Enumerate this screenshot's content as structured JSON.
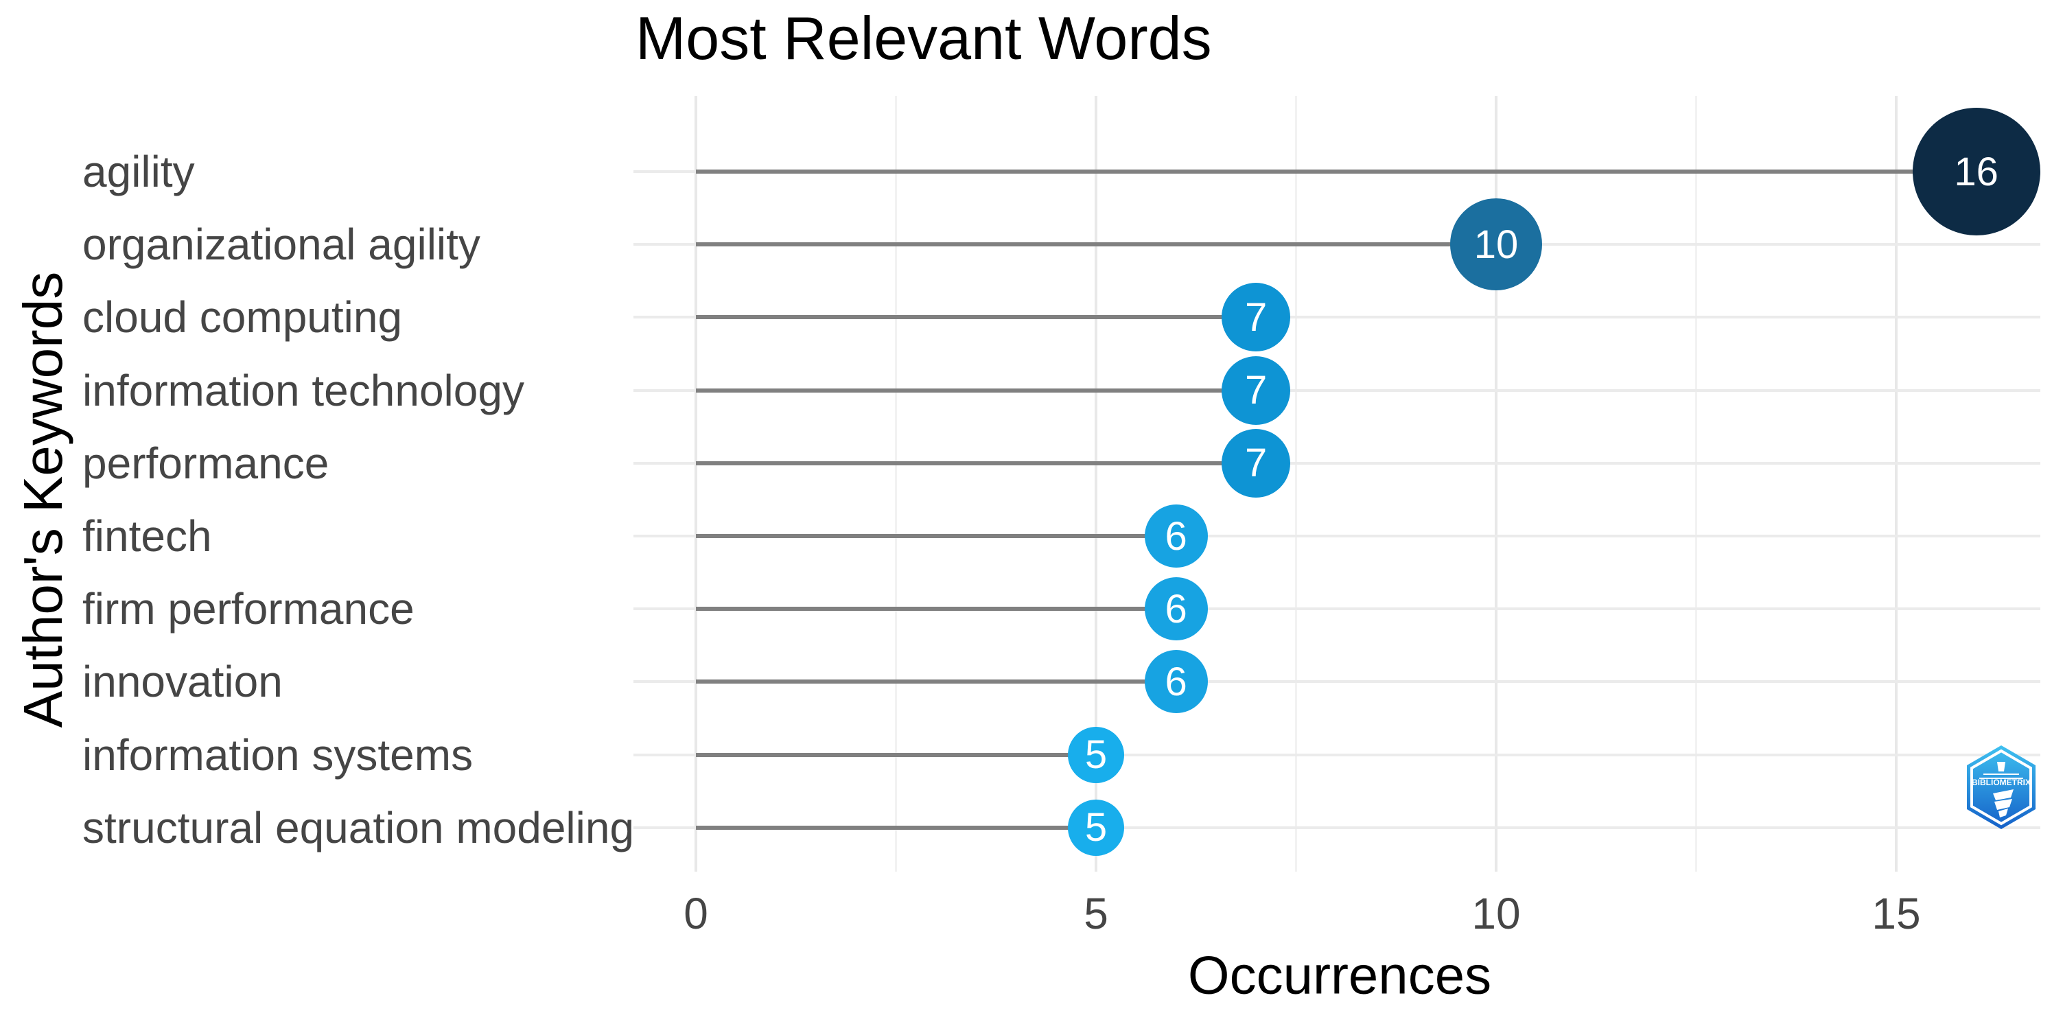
{
  "title": "Most Relevant Words",
  "axes": {
    "x_title": "Occurrences",
    "y_title": "Author's Keywords",
    "x_ticks": [
      "0",
      "5",
      "10",
      "15"
    ]
  },
  "chart_data": {
    "type": "bar",
    "variant": "horizontal-lollipop",
    "title": "Most Relevant Words",
    "xlabel": "Occurrences",
    "ylabel": "Author's Keywords",
    "xlim": [
      0,
      16.8
    ],
    "grid": true,
    "x_major_gridlines": [
      0,
      5,
      10,
      15
    ],
    "x_minor_gridlines": [
      2.5,
      7.5,
      12.5
    ],
    "categories": [
      "agility",
      "organizational agility",
      "cloud computing",
      "information technology",
      "performance",
      "fintech",
      "firm performance",
      "innovation",
      "information systems",
      "structural equation modeling"
    ],
    "values": [
      16,
      10,
      7,
      7,
      7,
      6,
      6,
      6,
      5,
      5
    ],
    "points": [
      {
        "label": "agility",
        "value": 16,
        "color": "#0d2b45",
        "radius_px": 93
      },
      {
        "label": "organizational agility",
        "value": 10,
        "color": "#1b6f9f",
        "radius_px": 67
      },
      {
        "label": "cloud computing",
        "value": 7,
        "color": "#0e94d4",
        "radius_px": 50
      },
      {
        "label": "information technology",
        "value": 7,
        "color": "#0e94d4",
        "radius_px": 50
      },
      {
        "label": "performance",
        "value": 7,
        "color": "#0e94d4",
        "radius_px": 50
      },
      {
        "label": "fintech",
        "value": 6,
        "color": "#17a3e2",
        "radius_px": 46
      },
      {
        "label": "firm performance",
        "value": 6,
        "color": "#17a3e2",
        "radius_px": 46
      },
      {
        "label": "innovation",
        "value": 6,
        "color": "#17a3e2",
        "radius_px": 46
      },
      {
        "label": "information systems",
        "value": 5,
        "color": "#18aeec",
        "radius_px": 41
      },
      {
        "label": "structural equation modeling",
        "value": 5,
        "color": "#18aeec",
        "radius_px": 41
      }
    ]
  },
  "colors": {
    "background": "#ffffff",
    "stem": "#808080",
    "grid_major": "#e8e8e8",
    "grid_minor": "#f2f2f2",
    "row_grid": "#ebebeb",
    "tick_text": "#454545",
    "bubble_label": "#ffffff",
    "logo_gradient_top": "#3fc1f0",
    "logo_gradient_bottom": "#1460c8"
  },
  "logo": {
    "text": "BIBLIOMETRIX"
  }
}
